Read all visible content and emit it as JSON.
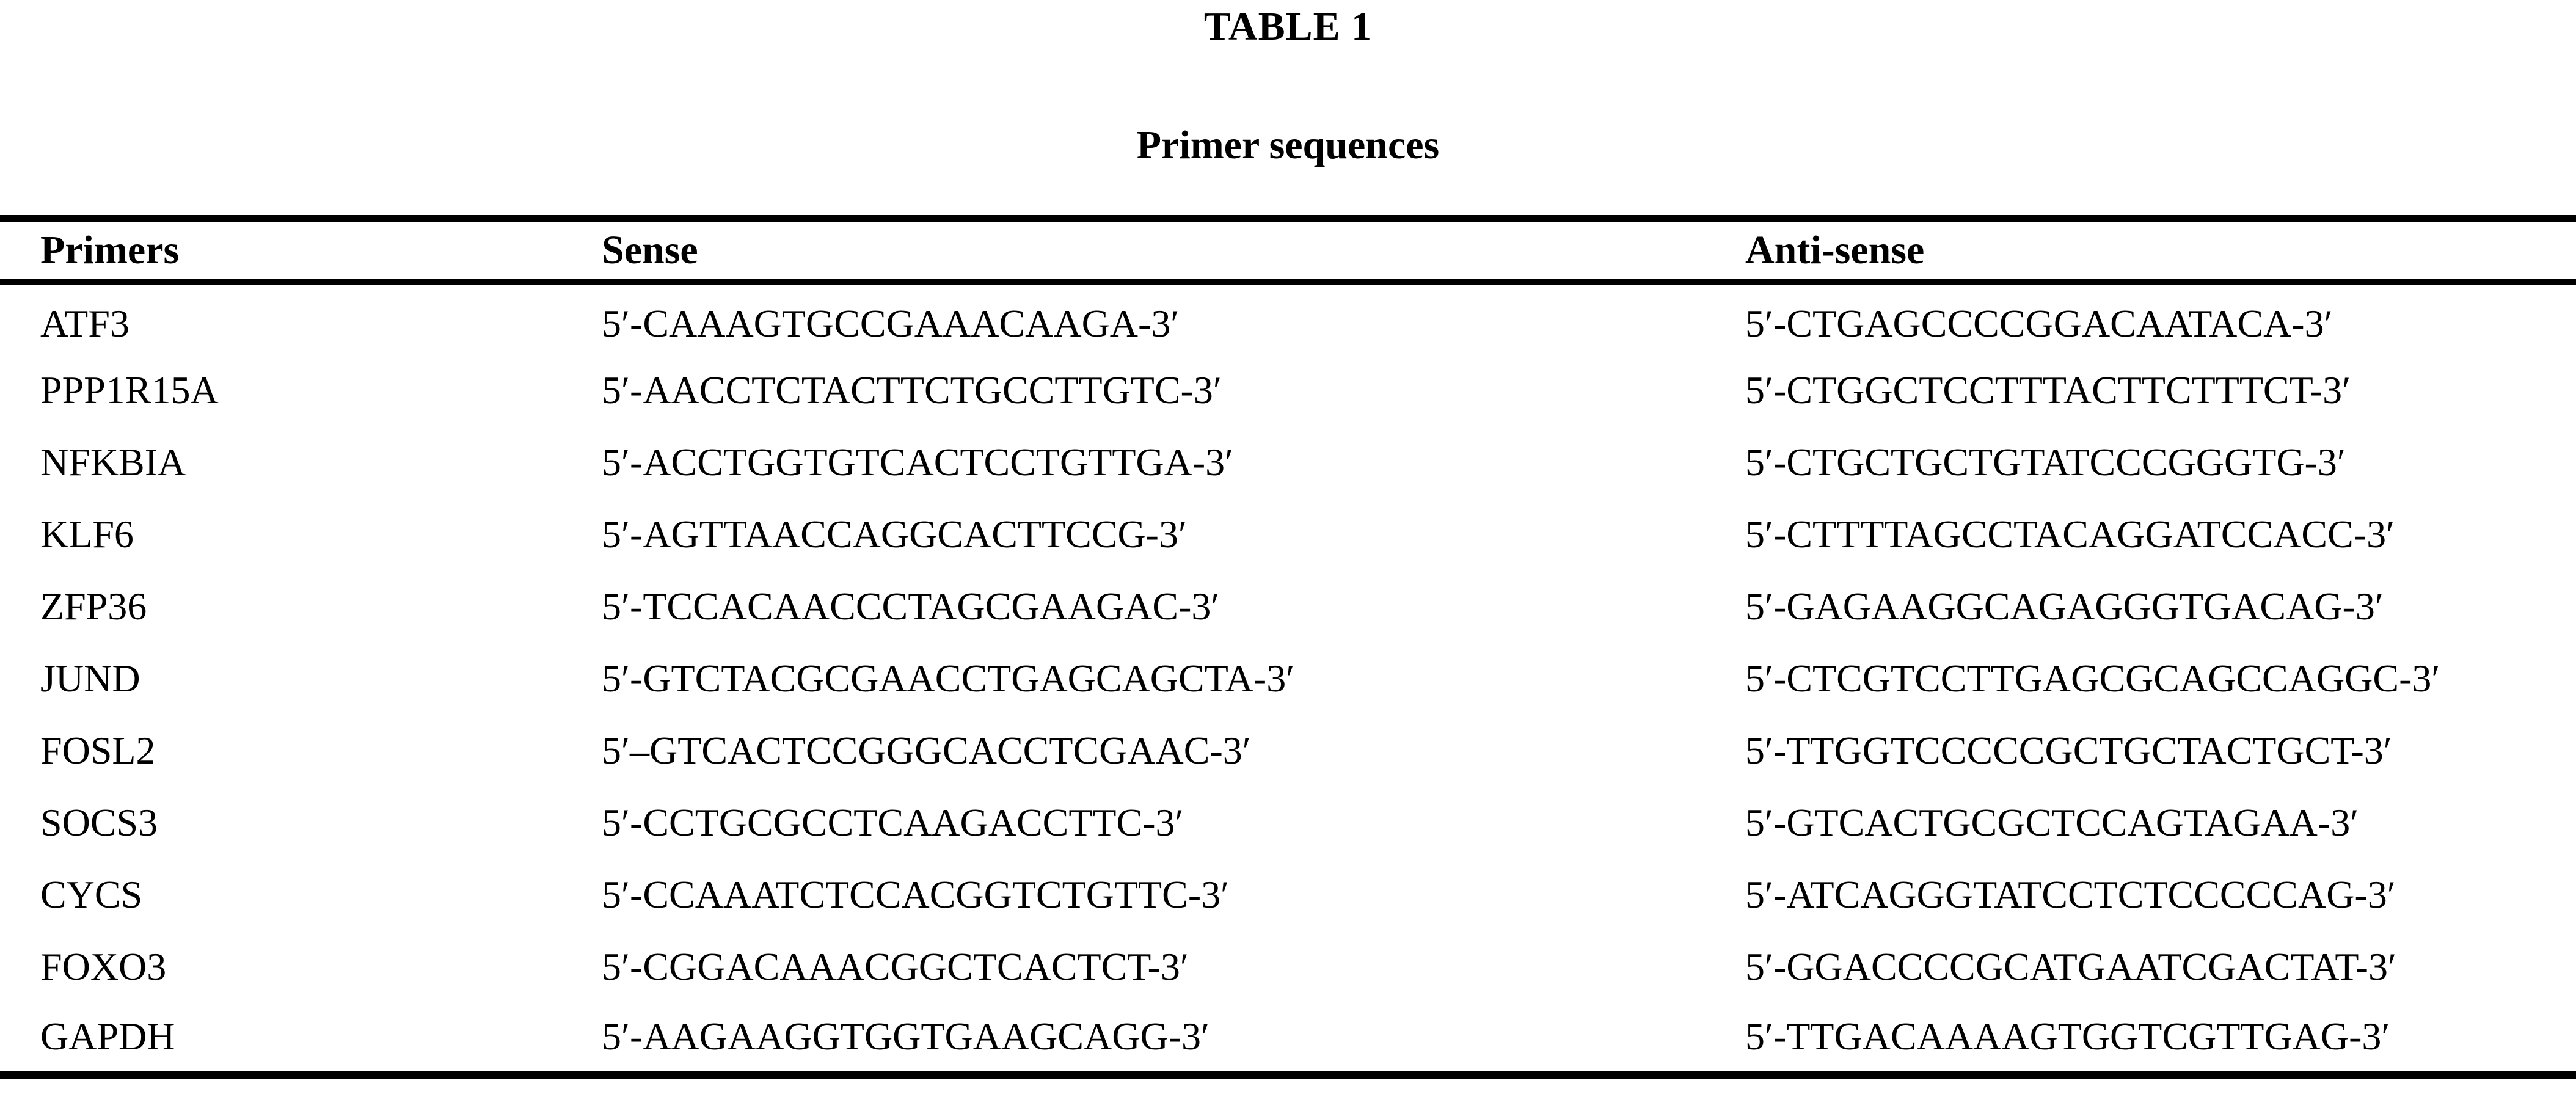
{
  "page": {
    "title": "TABLE 1",
    "subtitle": "Primer sequences"
  },
  "table": {
    "columns": [
      "Primers",
      "Sense",
      "Anti-sense"
    ],
    "rows": [
      {
        "primer": "ATF3",
        "sense": "5′-CAAAGTGCCGAAACAAGA-3′",
        "antisense": "5′-CTGAGCCCCGGACAATACA-3′"
      },
      {
        "primer": "PPP1R15A",
        "sense": "5′-AACCTCTACTTCTGCCTTGTC-3′",
        "antisense": "5′-CTGGCTCCTTTACTTCTTTCT-3′"
      },
      {
        "primer": "NFKBIA",
        "sense": "5′-ACCTGGTGTCACTCCTGTTGA-3′",
        "antisense": "5′-CTGCTGCTGTATCCCGGGTG-3′"
      },
      {
        "primer": "KLF6",
        "sense": "5′-AGTTAACCAGGCACTTCCG-3′",
        "antisense": "5′-CTTTTAGCCTACAGGATCCACC-3′"
      },
      {
        "primer": "ZFP36",
        "sense": "5′-TCCACAACCCTAGCGAAGAC-3′",
        "antisense": "5′-GAGAAGGCAGAGGGTGACAG-3′"
      },
      {
        "primer": "JUND",
        "sense": "5′-GTCTACGCGAACCTGAGCAGCTA-3′",
        "antisense": "5′-CTCGTCCTTGAGCGCAGCCAGGC-3′"
      },
      {
        "primer": "FOSL2",
        "sense": "5′–GTCACTCCGGGCACCTCGAAC-3′",
        "antisense": "5′-TTGGTCCCCCGCTGCTACTGCT-3′"
      },
      {
        "primer": "SOCS3",
        "sense": "5′-CCTGCGCCTCAAGACCTTC-3′",
        "antisense": "5′-GTCACTGCGCTCCAGTAGAA-3′"
      },
      {
        "primer": "CYCS",
        "sense": "5′-CCAAATCTCCACGGTCTGTTC-3′",
        "antisense": "5′-ATCAGGGTATCCTCTCCCCCAG-3′"
      },
      {
        "primer": "FOXO3",
        "sense": "5′-CGGACAAACGGCTCACTCT-3′",
        "antisense": "5′-GGACCCCGCATGAATCGACTAT-3′"
      },
      {
        "primer": "GAPDH",
        "sense": "5′-AAGAAGGTGGTGAAGCAGG-3′",
        "antisense": "5′-TTGACAAAAGTGGTCGTTGAG-3′"
      }
    ]
  }
}
